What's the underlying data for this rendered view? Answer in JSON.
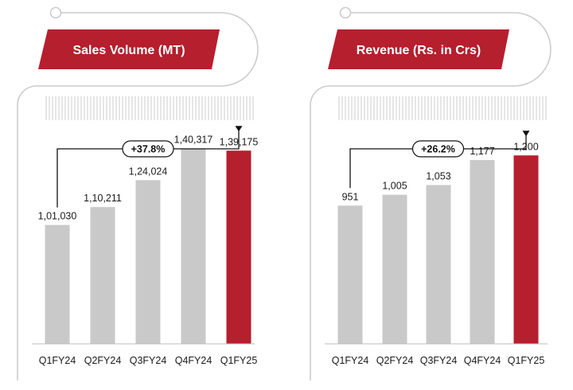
{
  "colors": {
    "accent": "#b51f2e",
    "bar_default": "#c9c9c9",
    "frame": "#cccccc",
    "hatch": "#dcdcdc",
    "text": "#1a1a1a"
  },
  "chart_data": [
    {
      "type": "bar",
      "title": "Sales Volume (MT)",
      "categories": [
        "Q1FY24",
        "Q2FY24",
        "Q3FY24",
        "Q4FY24",
        "Q1FY25"
      ],
      "values": [
        101030,
        110211,
        124024,
        140317,
        139175
      ],
      "value_labels": [
        "1,01,030",
        "1,10,211",
        "1,24,024",
        "1,40,317",
        "1,39,175"
      ],
      "highlight_index": 4,
      "growth": {
        "label": "+37.8%",
        "from_index": 0,
        "to_index": 4
      },
      "ylim": [
        40000,
        145000
      ],
      "xlabel": "",
      "ylabel": ""
    },
    {
      "type": "bar",
      "title": "Revenue (Rs. in Crs)",
      "categories": [
        "Q1FY24",
        "Q2FY24",
        "Q3FY24",
        "Q4FY24",
        "Q1FY25"
      ],
      "values": [
        951,
        1005,
        1053,
        1177,
        1200
      ],
      "value_labels": [
        "951",
        "1,005",
        "1,053",
        "1,177",
        "1,200"
      ],
      "highlight_index": 4,
      "growth": {
        "label": "+26.2%",
        "from_index": 0,
        "to_index": 4
      },
      "ylim": [
        265,
        1280
      ],
      "xlabel": "",
      "ylabel": ""
    }
  ]
}
